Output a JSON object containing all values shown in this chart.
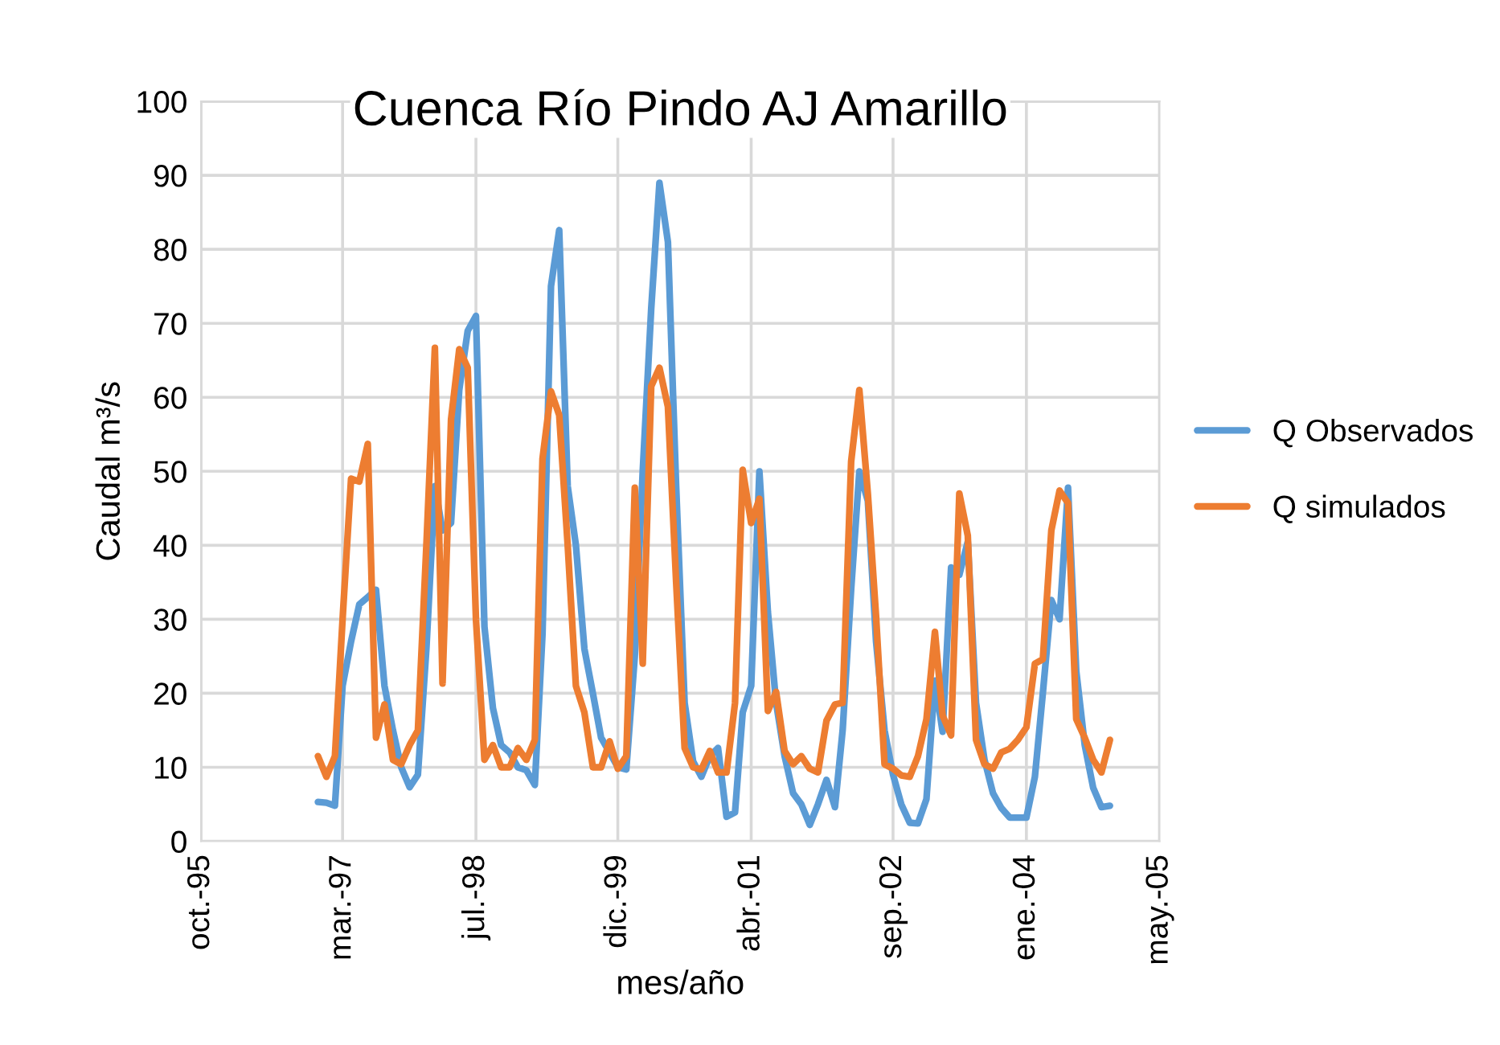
{
  "chart_data": {
    "type": "line",
    "title": "Cuenca Río Pindo AJ Amarillo",
    "xlabel": "mes/año",
    "ylabel": "Caudal m³/s",
    "x": [
      "1996-12",
      "1997-01",
      "1997-02",
      "1997-03",
      "1997-04",
      "1997-05",
      "1997-06",
      "1997-07",
      "1997-08",
      "1997-09",
      "1997-10",
      "1997-11",
      "1997-12",
      "1998-01",
      "1998-02",
      "1998-03",
      "1998-04",
      "1998-05",
      "1998-06",
      "1998-07",
      "1998-08",
      "1998-09",
      "1998-10",
      "1998-11",
      "1998-12",
      "1999-01",
      "1999-02",
      "1999-03",
      "1999-04",
      "1999-05",
      "1999-06",
      "1999-07",
      "1999-08",
      "1999-09",
      "1999-10",
      "1999-11",
      "1999-12",
      "2000-01",
      "2000-02",
      "2000-03",
      "2000-04",
      "2000-05",
      "2000-06",
      "2000-07",
      "2000-08",
      "2000-09",
      "2000-10",
      "2000-11",
      "2000-12",
      "2001-01",
      "2001-02",
      "2001-03",
      "2001-04",
      "2001-05",
      "2001-06",
      "2001-07",
      "2001-08",
      "2001-09",
      "2001-10",
      "2001-11",
      "2001-12",
      "2002-01",
      "2002-02",
      "2002-03",
      "2002-04",
      "2002-05",
      "2002-06",
      "2002-07",
      "2002-08",
      "2002-09",
      "2002-10",
      "2002-11",
      "2002-12",
      "2003-01",
      "2003-02",
      "2003-03",
      "2003-04",
      "2003-05",
      "2003-06",
      "2003-07",
      "2003-08",
      "2003-09",
      "2003-10",
      "2003-11",
      "2003-12",
      "2004-01",
      "2004-02",
      "2004-03",
      "2004-04",
      "2004-05",
      "2004-06",
      "2004-07",
      "2004-08",
      "2004-09",
      "2004-10",
      "2004-11"
    ],
    "series": [
      {
        "name": "Q Observados",
        "color": "#5b9bd5",
        "values": [
          5.3,
          5.2,
          4.8,
          21,
          27,
          32,
          33,
          34,
          21,
          15,
          10,
          7.3,
          9,
          26,
          48,
          42,
          43,
          61,
          69,
          71,
          29,
          18,
          13,
          12,
          10,
          9.6,
          7.6,
          28,
          75,
          82.6,
          48,
          40,
          26,
          20,
          14,
          12,
          10,
          9.7,
          25,
          50,
          72,
          89,
          81,
          48,
          18.7,
          10.8,
          8.7,
          11.5,
          12.6,
          3.3,
          3.9,
          17.4,
          21,
          50,
          31,
          18.7,
          11.5,
          6.5,
          5,
          2.2,
          5,
          8.3,
          4.6,
          15,
          34,
          50,
          46,
          27,
          15,
          9,
          5,
          2.5,
          2.4,
          5.7,
          21.7,
          14.8,
          37,
          36,
          40.5,
          18.7,
          11,
          6.5,
          4.5,
          3.2,
          3.2,
          3.2,
          8.7,
          20,
          32.6,
          30,
          47.8,
          23,
          13,
          7.2,
          4.6,
          4.8
        ]
      },
      {
        "name": "Q simulados",
        "color": "#ed7d31",
        "values": [
          11.5,
          8.7,
          11.5,
          30,
          49,
          48.6,
          53.7,
          14,
          18.5,
          11,
          10.4,
          13,
          15,
          40,
          66.7,
          21.3,
          57,
          66.5,
          64,
          30,
          11,
          13,
          10,
          10,
          12.6,
          11,
          13.7,
          51.7,
          60.8,
          57.6,
          40,
          21,
          17.4,
          10,
          10,
          13.5,
          9.8,
          11.5,
          47.8,
          24,
          61.5,
          64,
          58.7,
          35,
          12.6,
          10,
          9.7,
          12.2,
          9.3,
          9.3,
          18.7,
          50.2,
          43,
          46.3,
          17.6,
          20.2,
          12.2,
          10.4,
          11.5,
          9.8,
          9.3,
          16.3,
          18.5,
          18.7,
          51.3,
          61,
          47,
          30.4,
          10.4,
          9.8,
          8.9,
          8.7,
          11.5,
          16.5,
          28.3,
          17,
          14.3,
          47,
          41.3,
          13.7,
          10.4,
          9.8,
          12,
          12.5,
          13.7,
          15.4,
          24,
          24.6,
          42,
          47.4,
          45.7,
          16.5,
          14,
          11,
          9.3,
          13.7
        ]
      }
    ],
    "xlim": [
      "1995-10-01",
      "2005-05-01"
    ],
    "xticks": [
      {
        "value": "1995-10-01",
        "label": "oct.-95"
      },
      {
        "value": "1997-03-01",
        "label": "mar.-97"
      },
      {
        "value": "1998-07-01",
        "label": "jul.-98"
      },
      {
        "value": "1999-12-01",
        "label": "dic.-99"
      },
      {
        "value": "2001-04-01",
        "label": "abr.-01"
      },
      {
        "value": "2002-09-01",
        "label": "sep.-02"
      },
      {
        "value": "2004-01-01",
        "label": "ene.-04"
      },
      {
        "value": "2005-05-01",
        "label": "may.-05"
      }
    ],
    "ylim": [
      0,
      100
    ],
    "yticks": [
      0,
      10,
      20,
      30,
      40,
      50,
      60,
      70,
      80,
      90,
      100
    ],
    "grid": true,
    "legend": "right",
    "marker": "none",
    "line_style": "solid"
  }
}
